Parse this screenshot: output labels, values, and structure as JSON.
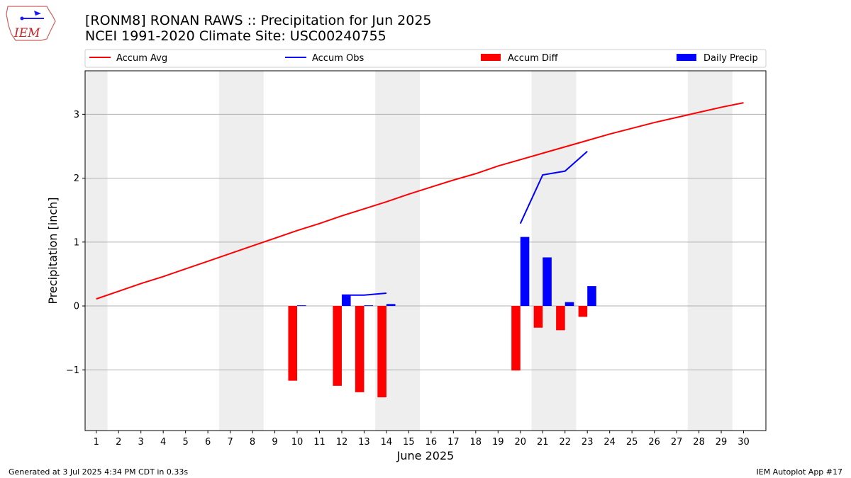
{
  "logo": {
    "text": "IEM"
  },
  "header": {
    "title_line1": "[RONM8] RONAN RAWS :: Precipitation for Jun 2025",
    "title_line2": "NCEI 1991-2020 Climate Site: USC00240755"
  },
  "footer": {
    "left": "Generated at 3 Jul 2025 4:34 PM CDT in 0.33s",
    "right": "IEM Autoplot App #17"
  },
  "chart_data": {
    "type": "bar",
    "xlabel": "June 2025",
    "ylabel": "Precipitation [inch]",
    "xlim": [
      0.5,
      31.0
    ],
    "ylim": [
      -1.95,
      3.68
    ],
    "yticks": [
      -1,
      0,
      1,
      2,
      3
    ],
    "ytick_labels": [
      "−1",
      "0",
      "1",
      "2",
      "3"
    ],
    "x": [
      1,
      2,
      3,
      4,
      5,
      6,
      7,
      8,
      9,
      10,
      11,
      12,
      13,
      14,
      15,
      16,
      17,
      18,
      19,
      20,
      21,
      22,
      23,
      24,
      25,
      26,
      27,
      28,
      29,
      30
    ],
    "weekend_bands": [
      [
        0.5,
        1.5
      ],
      [
        6.5,
        8.5
      ],
      [
        13.5,
        15.5
      ],
      [
        20.5,
        22.5
      ],
      [
        27.5,
        29.5
      ]
    ],
    "grid": "horizontal",
    "legend_position": "top",
    "colors": {
      "avg": "#ff0000",
      "obs": "#0000ff",
      "diff": "#ff0000",
      "daily": "#0000ff",
      "band": "#eeeeee",
      "grid": "#b0b0b0"
    },
    "series": [
      {
        "name": "Accum Avg",
        "kind": "line",
        "x": [
          1,
          2,
          3,
          4,
          5,
          6,
          7,
          8,
          9,
          10,
          11,
          12,
          13,
          14,
          15,
          16,
          17,
          18,
          19,
          20,
          21,
          22,
          23,
          24,
          25,
          26,
          27,
          28,
          29,
          30
        ],
        "values": [
          0.11,
          0.23,
          0.35,
          0.46,
          0.58,
          0.7,
          0.82,
          0.94,
          1.06,
          1.18,
          1.29,
          1.41,
          1.52,
          1.63,
          1.75,
          1.86,
          1.97,
          2.07,
          2.19,
          2.29,
          2.39,
          2.49,
          2.59,
          2.69,
          2.78,
          2.87,
          2.95,
          3.03,
          3.11,
          3.18
        ]
      },
      {
        "name": "Accum Obs",
        "kind": "line",
        "segments": [
          {
            "x": [
              12,
              13,
              14
            ],
            "values": [
              0.17,
              0.17,
              0.2
            ]
          },
          {
            "x": [
              20,
              21,
              22,
              23
            ],
            "values": [
              1.29,
              2.05,
              2.11,
              2.42
            ]
          }
        ]
      },
      {
        "name": "Accum Diff",
        "kind": "bar",
        "x": [
          10,
          12,
          13,
          14,
          20,
          21,
          22,
          23
        ],
        "values": [
          -1.17,
          -1.25,
          -1.35,
          -1.43,
          -1.01,
          -0.34,
          -0.38,
          -0.17
        ]
      },
      {
        "name": "Daily Precip",
        "kind": "bar",
        "x": [
          10,
          12,
          13,
          14,
          20,
          21,
          22,
          23
        ],
        "values": [
          0.01,
          0.17,
          0.01,
          0.03,
          1.08,
          0.76,
          0.06,
          0.31
        ]
      }
    ]
  }
}
